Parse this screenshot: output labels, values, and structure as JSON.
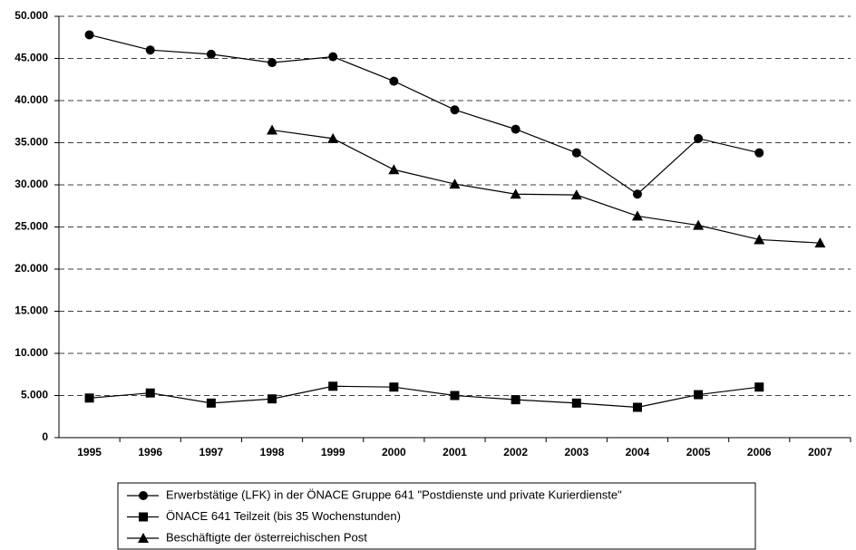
{
  "chart_data": {
    "type": "line",
    "categories": [
      "1995",
      "1996",
      "1997",
      "1998",
      "1999",
      "2000",
      "2001",
      "2002",
      "2003",
      "2004",
      "2005",
      "2006",
      "2007"
    ],
    "series": [
      {
        "name": "Erwerbstätige (LFK) in der ÖNACE Gruppe 641 \"Postdienste und private Kurierdienste\"",
        "color": "#000000",
        "marker": "circle",
        "values": [
          47800,
          46000,
          45500,
          44500,
          45200,
          42300,
          38900,
          36600,
          33800,
          28900,
          35500,
          33800,
          null
        ]
      },
      {
        "name": "ÖNACE 641 Teilzeit (bis 35 Wochenstunden)",
        "color": "#000000",
        "marker": "square",
        "values": [
          4700,
          5300,
          4100,
          4600,
          6100,
          6000,
          5000,
          4500,
          4100,
          3600,
          5100,
          6000,
          null
        ]
      },
      {
        "name": "Beschäftigte der österreichischen Post",
        "color": "#000000",
        "marker": "triangle",
        "values": [
          null,
          null,
          null,
          36500,
          35500,
          31800,
          30100,
          28900,
          28800,
          26300,
          25200,
          23500,
          23100
        ]
      }
    ],
    "ylim": [
      0,
      50000
    ],
    "yticks": [
      0,
      {
        "value": 5000,
        "label": "5.000"
      },
      {
        "value": 10000,
        "label": "10.000"
      },
      {
        "value": 15000,
        "label": "15.000"
      },
      {
        "value": 20000,
        "label": "20.000"
      },
      {
        "value": 25000,
        "label": "25.000"
      },
      {
        "value": 30000,
        "label": "30.000"
      },
      {
        "value": 35000,
        "label": "35.000"
      },
      {
        "value": 40000,
        "label": "40.000"
      },
      {
        "value": 45000,
        "label": "45.000"
      },
      {
        "value": 50000,
        "label": "50.000"
      }
    ],
    "grid": true,
    "grid_style": "dashed",
    "legend": "bottom"
  }
}
